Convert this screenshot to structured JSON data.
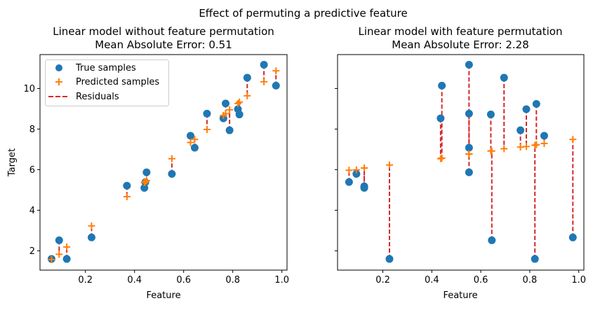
{
  "chart_data": {
    "suptitle": "Effect of permuting a predictive feature",
    "colors": {
      "true": "#1f77b4",
      "predicted": "#ff7f0e",
      "residual": "#d62728"
    },
    "panels": [
      {
        "type": "scatter",
        "title": "Linear model without feature permutation",
        "subtitle": "Mean Absolute Error: 0.51",
        "xlabel": "Feature",
        "ylabel": "Target",
        "xlim": [
          0.015,
          1.021
        ],
        "ylim": [
          1.05,
          11.67
        ],
        "xticks": [
          "0.2",
          "0.4",
          "0.6",
          "0.8",
          "1.0"
        ],
        "yticks": [
          "2",
          "4",
          "6",
          "8",
          "10"
        ],
        "show_ytick_labels": true,
        "grid": false,
        "legend": {
          "placement": "upper-left",
          "entries": [
            "True samples",
            "Predicted samples",
            "Residuals"
          ]
        },
        "x": [
          0.062,
          0.093,
          0.124,
          0.225,
          0.369,
          0.44,
          0.444,
          0.449,
          0.552,
          0.628,
          0.645,
          0.695,
          0.762,
          0.771,
          0.787,
          0.821,
          0.827,
          0.859,
          0.927,
          0.976
        ],
        "true": [
          1.6,
          2.52,
          1.6,
          2.66,
          5.21,
          5.1,
          5.38,
          5.87,
          5.79,
          7.67,
          7.08,
          8.76,
          8.53,
          9.26,
          7.94,
          8.98,
          8.72,
          10.53,
          11.17,
          10.14
        ],
        "predicted": [
          1.57,
          1.83,
          2.19,
          3.23,
          4.67,
          5.36,
          5.4,
          5.46,
          6.54,
          7.34,
          7.49,
          7.98,
          8.67,
          8.76,
          8.95,
          9.26,
          9.33,
          9.64,
          10.33,
          10.87
        ]
      },
      {
        "type": "scatter",
        "title": "Linear model with feature permutation",
        "subtitle": "Mean Absolute Error: 2.28",
        "xlabel": "Feature",
        "ylabel": "",
        "xlim": [
          0.015,
          1.021
        ],
        "ylim": [
          1.05,
          11.67
        ],
        "xticks": [
          "0.2",
          "0.4",
          "0.6",
          "0.8",
          "1.0"
        ],
        "yticks": [
          "2",
          "4",
          "6",
          "8",
          "10"
        ],
        "show_ytick_labels": false,
        "grid": false,
        "x": [
          0.062,
          0.092,
          0.124,
          0.124,
          0.227,
          0.436,
          0.441,
          0.552,
          0.552,
          0.552,
          0.552,
          0.641,
          0.645,
          0.695,
          0.762,
          0.786,
          0.821,
          0.827,
          0.859,
          0.976
        ],
        "true": [
          5.39,
          5.79,
          5.18,
          5.1,
          1.6,
          8.53,
          10.14,
          11.17,
          8.76,
          7.08,
          5.87,
          8.72,
          2.52,
          10.53,
          7.94,
          8.98,
          1.6,
          9.24,
          7.67,
          2.66
        ],
        "predicted": [
          5.97,
          5.99,
          6.08,
          6.08,
          6.23,
          6.54,
          6.57,
          6.77,
          6.77,
          6.77,
          6.77,
          6.92,
          6.92,
          7.03,
          7.11,
          7.14,
          7.2,
          7.23,
          7.29,
          7.49
        ]
      }
    ]
  }
}
